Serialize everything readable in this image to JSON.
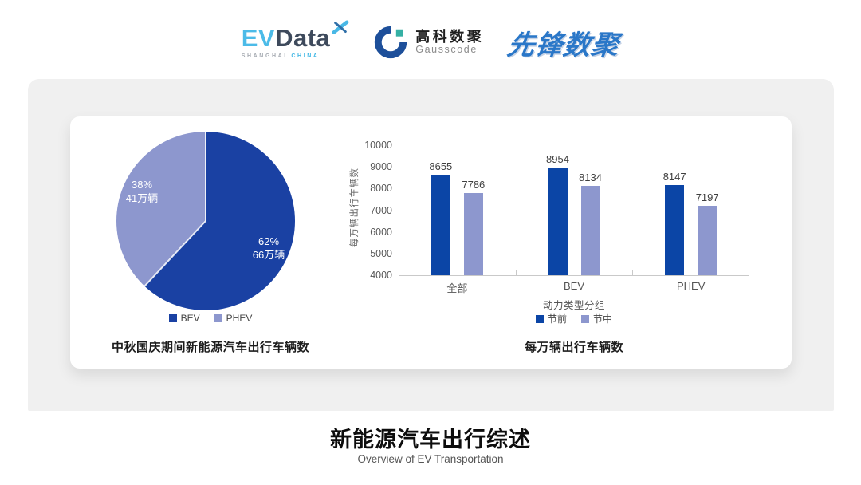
{
  "header": {
    "evdata": {
      "ev": "EV",
      "data": "Data",
      "sub_left": "SHANGHAI",
      "sub_right": "CHINA"
    },
    "gausscode": {
      "cn": "高科数聚",
      "en": "Gausscode"
    },
    "pioneer": {
      "text": "先锋数聚"
    }
  },
  "colors": {
    "pie_dark": "#1a41a3",
    "bar_dark": "#0b45a6",
    "light_purple": "#8d97ce",
    "panel_gray": "#f0f0f0",
    "evdata_blue": "#4cbbe8",
    "evdata_dark": "#3e4a5c",
    "gauss_navy": "#1d4f9a",
    "gauss_teal": "#35b0a4",
    "pioneer_blue": "#2a77c8"
  },
  "footer": {
    "title": "新能源汽车出行综述",
    "subtitle": "Overview of EV Transportation"
  },
  "chart_data": [
    {
      "type": "pie",
      "title": "中秋国庆期间新能源汽车出行车辆数",
      "start_angle": "top",
      "direction": "clockwise",
      "legend_position": "bottom",
      "slices": [
        {
          "label": "BEV",
          "pct": 62,
          "pct_label": "62%",
          "amount": "66万辆",
          "color": "#1a41a3"
        },
        {
          "label": "PHEV",
          "pct": 38,
          "pct_label": "38%",
          "amount": "41万辆",
          "color": "#8d97ce"
        }
      ]
    },
    {
      "type": "bar",
      "title": "每万辆出行车辆数",
      "categories": [
        "全部",
        "BEV",
        "PHEV"
      ],
      "series": [
        {
          "name": "节前",
          "values": [
            8655,
            8954,
            8147
          ],
          "color": "#0b45a6"
        },
        {
          "name": "节中",
          "values": [
            7786,
            8134,
            7197
          ],
          "color": "#8d97ce"
        }
      ],
      "xlabel": "动力类型分组",
      "ylabel": "每万辆出行车辆数",
      "ylim": [
        4000,
        10000
      ],
      "ytick_step": 1000,
      "yticks": [
        10000,
        9000,
        8000,
        7000,
        6000,
        5000,
        4000
      ],
      "grid": false,
      "data_labels": true,
      "legend_position": "bottom"
    }
  ]
}
